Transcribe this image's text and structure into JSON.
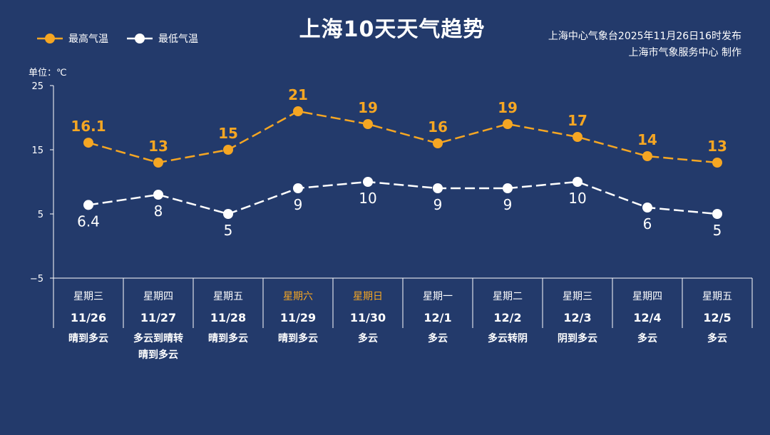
{
  "title": "上海10天天气趋势",
  "legend": {
    "high_label": "最高气温",
    "low_label": "最低气温"
  },
  "source": {
    "line1": "上海中心气象台2025年11月26日16时发布",
    "line2": "上海市气象服务中心  制作"
  },
  "unit_label": "单位：℃",
  "colors": {
    "background": "#233a6b",
    "high": "#f5a623",
    "low": "#ffffff",
    "weekend": "#f5a623",
    "text": "#ffffff"
  },
  "chart_data": {
    "type": "line",
    "title": "上海10天天气趋势",
    "ylabel": "单位：℃",
    "ylim": [
      -5,
      25
    ],
    "yticks": [
      "25",
      "15",
      "5",
      "−5"
    ],
    "grid": false,
    "legend_position": "top-left",
    "categories": [
      "11/26",
      "11/27",
      "11/28",
      "11/29",
      "11/30",
      "12/1",
      "12/2",
      "12/3",
      "12/4",
      "12/5"
    ],
    "weekdays": [
      "星期三",
      "星期四",
      "星期五",
      "星期六",
      "星期日",
      "星期一",
      "星期二",
      "星期三",
      "星期四",
      "星期五"
    ],
    "weekend_flags": [
      false,
      false,
      false,
      true,
      true,
      false,
      false,
      false,
      false,
      false
    ],
    "weather": [
      "晴到多云",
      "多云到晴转晴到多云",
      "晴到多云",
      "晴到多云",
      "多云",
      "多云",
      "多云转阴",
      "阴到多云",
      "多云",
      "多云"
    ],
    "weather_lines": [
      [
        "晴到多云"
      ],
      [
        "多云到晴转",
        "晴到多云"
      ],
      [
        "晴到多云"
      ],
      [
        "晴到多云"
      ],
      [
        "多云"
      ],
      [
        "多云"
      ],
      [
        "多云转阴"
      ],
      [
        "阴到多云"
      ],
      [
        "多云"
      ],
      [
        "多云"
      ]
    ],
    "series": [
      {
        "name": "最高气温",
        "values": [
          16.1,
          13,
          15,
          21,
          19,
          16,
          19,
          17,
          14,
          13
        ],
        "labels": [
          "16.1",
          "13",
          "15",
          "21",
          "19",
          "16",
          "19",
          "17",
          "14",
          "13"
        ]
      },
      {
        "name": "最低气温",
        "values": [
          6.4,
          8,
          5,
          9,
          10,
          9,
          9,
          10,
          6,
          5
        ],
        "labels": [
          "6.4",
          "8",
          "5",
          "9",
          "10",
          "9",
          "9",
          "10",
          "6",
          "5"
        ]
      }
    ]
  }
}
